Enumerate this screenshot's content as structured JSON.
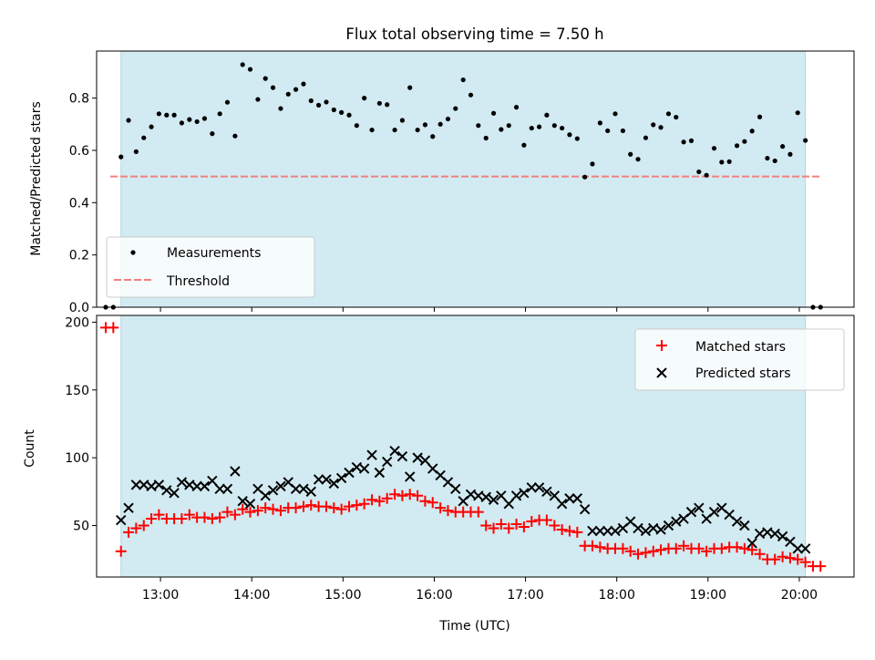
{
  "chart_data": [
    {
      "type": "scatter",
      "title": "Flux total observing time = 7.50 h",
      "xlabel": "",
      "ylabel": "Matched/Predicted stars",
      "xlim": [
        12.3,
        20.6
      ],
      "ylim": [
        0,
        0.98
      ],
      "yticks": [
        "0.0",
        "0.2",
        "0.4",
        "0.6",
        "0.8"
      ],
      "grid": false,
      "legend_position": "lower-left",
      "shaded_interval": {
        "start": 12.567,
        "end": 20.067,
        "color": "#add8e6"
      },
      "threshold": {
        "name": "Threshold",
        "value": 0.5,
        "x_range": [
          12.45,
          20.25
        ],
        "color": "#f08080"
      },
      "series": [
        {
          "name": "Measurements",
          "color": "#000000",
          "x": [
            12.4,
            12.483,
            12.567,
            12.65,
            12.733,
            12.817,
            12.9,
            12.983,
            13.067,
            13.15,
            13.233,
            13.317,
            13.4,
            13.483,
            13.567,
            13.65,
            13.733,
            13.817,
            13.9,
            13.983,
            14.067,
            14.15,
            14.233,
            14.317,
            14.4,
            14.483,
            14.567,
            14.65,
            14.733,
            14.817,
            14.9,
            14.983,
            15.067,
            15.15,
            15.233,
            15.317,
            15.4,
            15.483,
            15.567,
            15.65,
            15.733,
            15.817,
            15.9,
            15.983,
            16.067,
            16.15,
            16.233,
            16.317,
            16.4,
            16.483,
            16.567,
            16.65,
            16.733,
            16.817,
            16.9,
            16.983,
            17.067,
            17.15,
            17.233,
            17.317,
            17.4,
            17.483,
            17.567,
            17.65,
            17.733,
            17.817,
            17.9,
            17.983,
            18.067,
            18.15,
            18.233,
            18.317,
            18.4,
            18.483,
            18.567,
            18.65,
            18.733,
            18.817,
            18.9,
            18.983,
            19.067,
            19.15,
            19.233,
            19.317,
            19.4,
            19.483,
            19.567,
            19.65,
            19.733,
            19.817,
            19.9,
            19.983,
            20.067,
            20.15,
            20.233
          ],
          "y": [
            0.0,
            0.0,
            0.575,
            0.715,
            0.595,
            0.648,
            0.69,
            0.74,
            0.735,
            0.735,
            0.705,
            0.718,
            0.71,
            0.722,
            0.664,
            0.74,
            0.784,
            0.655,
            0.928,
            0.91,
            0.795,
            0.875,
            0.84,
            0.76,
            0.815,
            0.833,
            0.854,
            0.79,
            0.773,
            0.785,
            0.755,
            0.745,
            0.735,
            0.695,
            0.8,
            0.678,
            0.78,
            0.775,
            0.678,
            0.715,
            0.84,
            0.678,
            0.698,
            0.653,
            0.7,
            0.72,
            0.76,
            0.87,
            0.812,
            0.695,
            0.647,
            0.742,
            0.68,
            0.695,
            0.765,
            0.62,
            0.685,
            0.69,
            0.735,
            0.695,
            0.685,
            0.66,
            0.645,
            0.498,
            0.548,
            0.705,
            0.675,
            0.74,
            0.675,
            0.585,
            0.566,
            0.648,
            0.698,
            0.688,
            0.74,
            0.727,
            0.632,
            0.637,
            0.518,
            0.505,
            0.608,
            0.555,
            0.557,
            0.618,
            0.634,
            0.674,
            0.728,
            0.57,
            0.56,
            0.615,
            0.585,
            0.744,
            0.638,
            0.0,
            0.0
          ]
        }
      ]
    },
    {
      "type": "scatter",
      "title": "",
      "xlabel": "Time (UTC)",
      "ylabel": "Count",
      "xlim": [
        12.3,
        20.6
      ],
      "ylim": [
        12,
        205
      ],
      "yticks": [
        "50",
        "100",
        "150",
        "200"
      ],
      "xticks": [
        "13:00",
        "14:00",
        "15:00",
        "16:00",
        "17:00",
        "18:00",
        "19:00",
        "20:00"
      ],
      "grid": false,
      "legend_position": "upper-right",
      "shaded_interval": {
        "start": 12.567,
        "end": 20.067,
        "color": "#add8e6"
      },
      "series": [
        {
          "name": "Matched stars",
          "marker": "plus",
          "color": "#ff0000",
          "x": [
            12.4,
            12.483,
            12.567,
            12.65,
            12.733,
            12.817,
            12.9,
            12.983,
            13.067,
            13.15,
            13.233,
            13.317,
            13.4,
            13.483,
            13.567,
            13.65,
            13.733,
            13.817,
            13.9,
            13.983,
            14.067,
            14.15,
            14.233,
            14.317,
            14.4,
            14.483,
            14.567,
            14.65,
            14.733,
            14.817,
            14.9,
            14.983,
            15.067,
            15.15,
            15.233,
            15.317,
            15.4,
            15.483,
            15.567,
            15.65,
            15.733,
            15.817,
            15.9,
            15.983,
            16.067,
            16.15,
            16.233,
            16.317,
            16.4,
            16.483,
            16.567,
            16.65,
            16.733,
            16.817,
            16.9,
            16.983,
            17.067,
            17.15,
            17.233,
            17.317,
            17.4,
            17.483,
            17.567,
            17.65,
            17.733,
            17.817,
            17.9,
            17.983,
            18.067,
            18.15,
            18.233,
            18.317,
            18.4,
            18.483,
            18.567,
            18.65,
            18.733,
            18.817,
            18.9,
            18.983,
            19.067,
            19.15,
            19.233,
            19.317,
            19.4,
            19.483,
            19.567,
            19.65,
            19.733,
            19.817,
            19.9,
            19.983,
            20.067,
            20.15,
            20.233
          ],
          "y": [
            196,
            196,
            31,
            45,
            48,
            50,
            55,
            58,
            55,
            55,
            55,
            58,
            56,
            56,
            55,
            56,
            60,
            58,
            62,
            60,
            61,
            63,
            62,
            61,
            63,
            63,
            64,
            65,
            64,
            64,
            63,
            62,
            64,
            65,
            66,
            69,
            68,
            70,
            73,
            72,
            73,
            72,
            68,
            67,
            63,
            61,
            60,
            60,
            60,
            60,
            50,
            48,
            51,
            48,
            51,
            49,
            53,
            54,
            54,
            50,
            47,
            46,
            45,
            35,
            35,
            34,
            33,
            33,
            33,
            31,
            29,
            30,
            31,
            32,
            33,
            33,
            35,
            33,
            33,
            31,
            33,
            33,
            34,
            34,
            33,
            32,
            29,
            25,
            25,
            27,
            26,
            25,
            23,
            20,
            20
          ]
        },
        {
          "name": "Predicted stars",
          "marker": "x",
          "color": "#000000",
          "x": [
            12.567,
            12.65,
            12.733,
            12.817,
            12.9,
            12.983,
            13.067,
            13.15,
            13.233,
            13.317,
            13.4,
            13.483,
            13.567,
            13.65,
            13.733,
            13.817,
            13.9,
            13.983,
            14.067,
            14.15,
            14.233,
            14.317,
            14.4,
            14.483,
            14.567,
            14.65,
            14.733,
            14.817,
            14.9,
            14.983,
            15.067,
            15.15,
            15.233,
            15.317,
            15.4,
            15.483,
            15.567,
            15.65,
            15.733,
            15.817,
            15.9,
            15.983,
            16.067,
            16.15,
            16.233,
            16.317,
            16.4,
            16.483,
            16.567,
            16.65,
            16.733,
            16.817,
            16.9,
            16.983,
            17.067,
            17.15,
            17.233,
            17.317,
            17.4,
            17.483,
            17.567,
            17.65,
            17.733,
            17.817,
            17.9,
            17.983,
            18.067,
            18.15,
            18.233,
            18.317,
            18.4,
            18.483,
            18.567,
            18.65,
            18.733,
            18.817,
            18.9,
            18.983,
            19.067,
            19.15,
            19.233,
            19.317,
            19.4,
            19.483,
            19.567,
            19.65,
            19.733,
            19.817,
            19.9,
            19.983,
            20.067
          ],
          "y": [
            54,
            63,
            80,
            80,
            79,
            80,
            76,
            74,
            82,
            80,
            79,
            79,
            83,
            77,
            77,
            90,
            68,
            66,
            77,
            72,
            76,
            79,
            82,
            77,
            77,
            75,
            84,
            84,
            81,
            85,
            89,
            93,
            92,
            102,
            89,
            97,
            105,
            101,
            86,
            100,
            98,
            92,
            87,
            82,
            77,
            68,
            73,
            72,
            71,
            69,
            72,
            66,
            72,
            74,
            78,
            78,
            75,
            72,
            66,
            70,
            70,
            62,
            46,
            46,
            46,
            46,
            48,
            53,
            48,
            46,
            48,
            47,
            50,
            53,
            55,
            60,
            63,
            55,
            60,
            63,
            58,
            53,
            50,
            37,
            44,
            45,
            44,
            42,
            38,
            33,
            33
          ]
        }
      ]
    }
  ]
}
